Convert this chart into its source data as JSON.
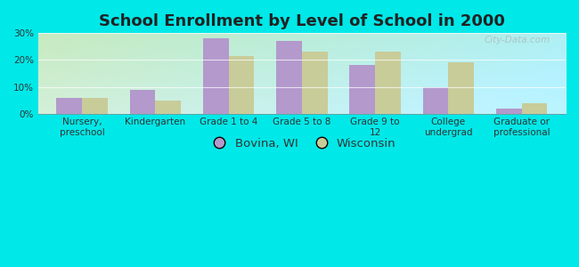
{
  "title": "School Enrollment by Level of School in 2000",
  "categories": [
    "Nursery,\npreschool",
    "Kindergarten",
    "Grade 1 to 4",
    "Grade 5 to 8",
    "Grade 9 to\n12",
    "College\nundergrad",
    "Graduate or\nprofessional"
  ],
  "bovina_values": [
    6.0,
    9.0,
    28.0,
    27.0,
    18.0,
    10.0,
    2.0
  ],
  "wisconsin_values": [
    6.0,
    5.0,
    21.5,
    23.0,
    23.0,
    19.0,
    4.0
  ],
  "bovina_color": "#b399cc",
  "wisconsin_color": "#c8cc99",
  "background_outer": "#00e8e8",
  "background_inner_topleft": "#c8e8c0",
  "background_inner_bottomright": "#c0f0f0",
  "ylim": [
    0,
    30
  ],
  "yticks": [
    0,
    10,
    20,
    30
  ],
  "legend_labels": [
    "Bovina, WI",
    "Wisconsin"
  ],
  "bar_width": 0.35,
  "title_fontsize": 13,
  "tick_fontsize": 7.5,
  "legend_fontsize": 9.5,
  "watermark": "City-Data.com"
}
